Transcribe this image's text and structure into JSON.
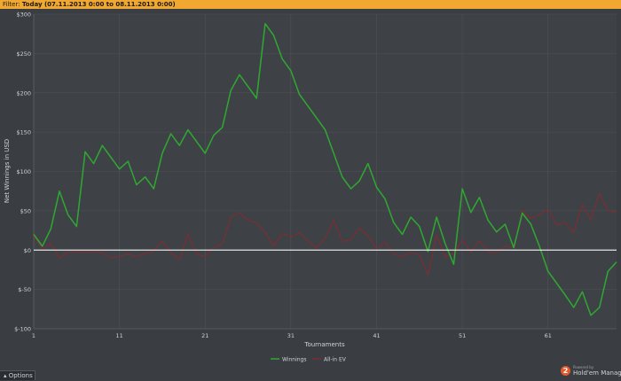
{
  "filter": {
    "label": "Filter:",
    "value": "Today (07.11.2013 0:00 to 08.11.2013 0:00)"
  },
  "options": {
    "label": "Options",
    "icon": "triangle-up-icon"
  },
  "brand": {
    "line1": "Powered by",
    "line2": "Hold'em Manager",
    "icon_text": "2",
    "icon": "hm2-logo-icon"
  },
  "colors": {
    "background": "#3a3e42",
    "plot": "#3e4246",
    "grid": "#4e5358",
    "winnings": "#2fa832",
    "allin_ev": "#7a2e34",
    "zero_line": "#e6e6e6",
    "filter_bar": "#f0a830"
  },
  "chart_data": {
    "type": "line",
    "xlabel": "Tournaments",
    "ylabel": "Net Winnings in USD",
    "xlim": [
      1,
      69
    ],
    "ylim": [
      -100,
      300
    ],
    "xticks": [
      1,
      11,
      21,
      31,
      41,
      51,
      61
    ],
    "yticks": [
      -100,
      -50,
      0,
      50,
      100,
      150,
      200,
      250,
      300
    ],
    "ytick_labels": [
      "$-100",
      "$-50",
      "$0",
      "$50",
      "$100",
      "$150",
      "$200",
      "$250",
      "$300"
    ],
    "grid": true,
    "legend_position": "bottom-center",
    "series": [
      {
        "name": "Winnings",
        "color": "#2fa832",
        "values": [
          20,
          5,
          27,
          75,
          45,
          30,
          125,
          110,
          133,
          118,
          103,
          113,
          83,
          93,
          78,
          123,
          148,
          133,
          153,
          138,
          123,
          146,
          156,
          203,
          223,
          208,
          193,
          288,
          273,
          243,
          228,
          198,
          183,
          168,
          153,
          123,
          93,
          78,
          88,
          110,
          80,
          65,
          35,
          20,
          42,
          30,
          -2,
          42,
          8,
          -18,
          78,
          48,
          67,
          38,
          23,
          33,
          3,
          47,
          33,
          5,
          -27,
          -42,
          -57,
          -73,
          -53,
          -83,
          -73,
          -27,
          -15
        ]
      },
      {
        "name": "All-in EV",
        "color": "#7a2e34",
        "values": [
          18,
          2,
          8,
          -10,
          -3,
          -2,
          -2,
          -2,
          -3,
          -10,
          -8,
          -5,
          -8,
          -4,
          -2,
          12,
          -3,
          -12,
          20,
          -5,
          -8,
          3,
          8,
          42,
          48,
          38,
          35,
          23,
          5,
          21,
          17,
          22,
          12,
          3,
          15,
          38,
          11,
          13,
          28,
          18,
          2,
          10,
          -5,
          -8,
          -3,
          -6,
          -32,
          19,
          -8,
          -5,
          13,
          -3,
          12,
          -2,
          -3,
          5,
          3,
          50,
          40,
          45,
          52,
          32,
          35,
          22,
          58,
          38,
          72,
          50,
          48
        ]
      }
    ]
  }
}
